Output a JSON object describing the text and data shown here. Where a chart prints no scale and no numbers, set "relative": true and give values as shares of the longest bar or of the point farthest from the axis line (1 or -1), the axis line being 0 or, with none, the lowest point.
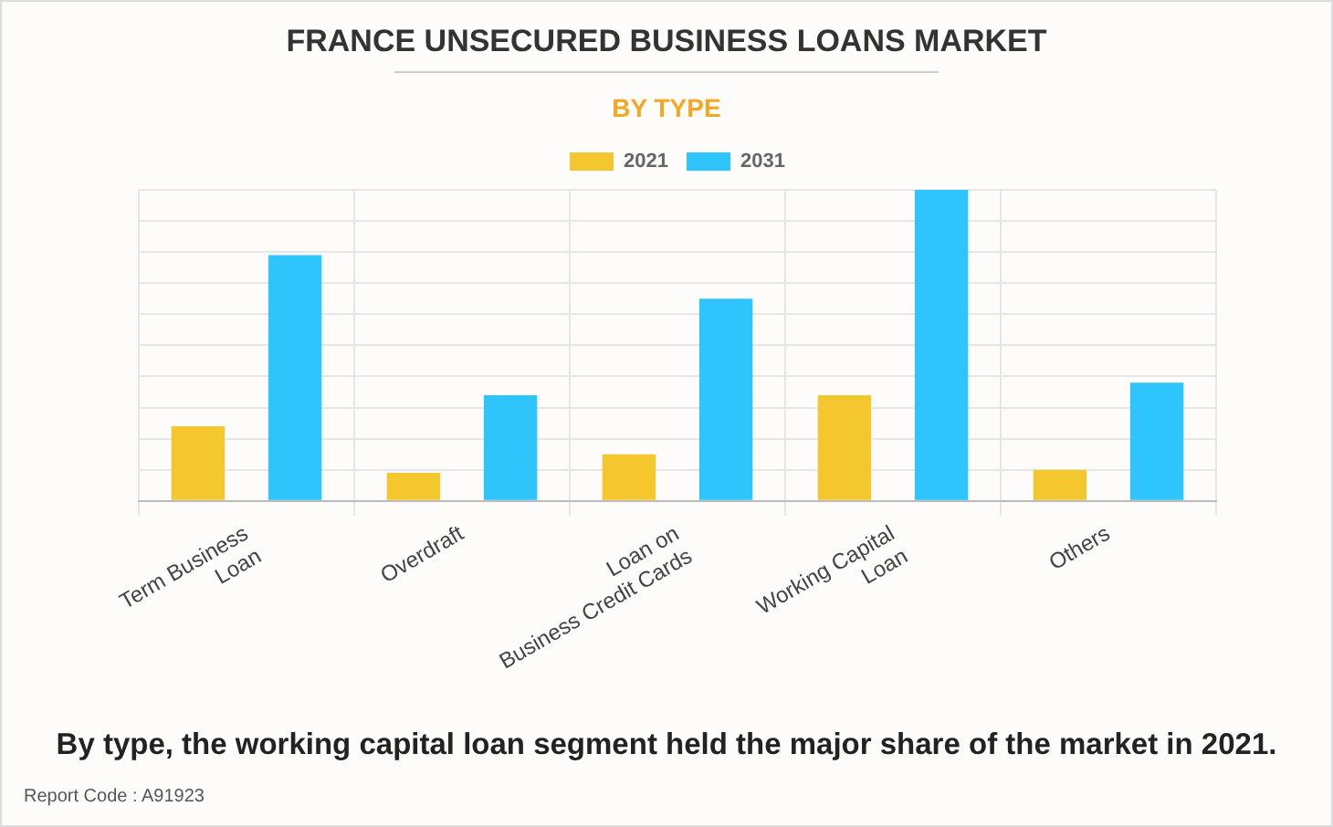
{
  "chart_data": {
    "type": "bar",
    "title": "FRANCE UNSECURED BUSINESS LOANS MARKET",
    "subtitle": "BY TYPE",
    "categories": [
      "Term Business\nLoan",
      "Overdraft",
      "Loan on\nBusiness Credit Cards",
      "Working Capital\nLoan",
      "Others"
    ],
    "series": [
      {
        "name": "2021",
        "color": "#f5c72e",
        "values": [
          0.24,
          0.09,
          0.15,
          0.34,
          0.1
        ]
      },
      {
        "name": "2031",
        "color": "#2ec5fd",
        "values": [
          0.79,
          0.34,
          0.65,
          1,
          0.38
        ]
      }
    ],
    "relative": true,
    "grid": true,
    "legend": "top",
    "annotations": [
      "By type, the working capital loan segment held the major share of the market in 2021.",
      "Report Code : A91923"
    ]
  }
}
